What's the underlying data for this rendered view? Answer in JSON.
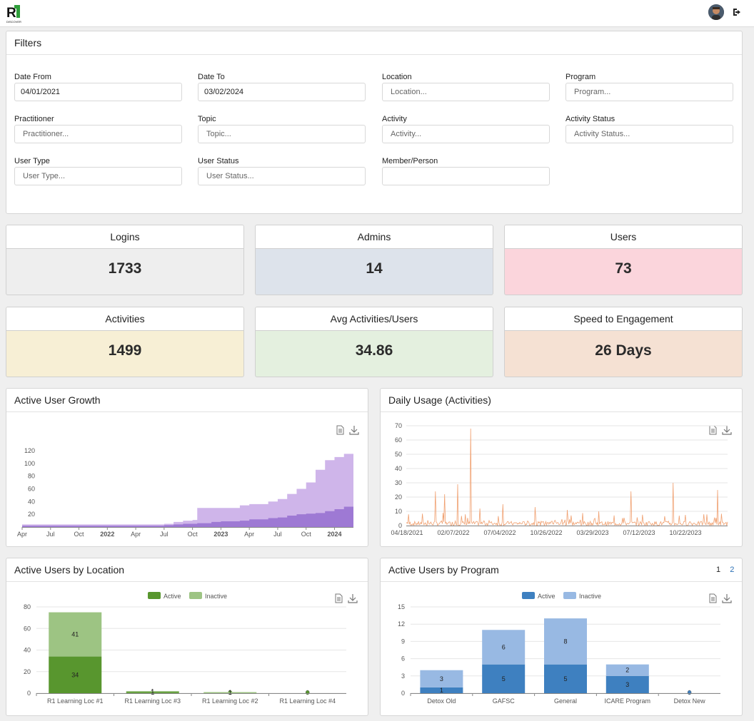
{
  "brand": {
    "logo_text": "DISCOVER"
  },
  "filters": {
    "title": "Filters",
    "date_from": {
      "label": "Date From",
      "value": "04/01/2021"
    },
    "date_to": {
      "label": "Date To",
      "value": "03/02/2024"
    },
    "location": {
      "label": "Location",
      "placeholder": "Location..."
    },
    "program": {
      "label": "Program",
      "placeholder": "Program..."
    },
    "practitioner": {
      "label": "Practitioner",
      "placeholder": "Practitioner..."
    },
    "topic": {
      "label": "Topic",
      "placeholder": "Topic..."
    },
    "activity": {
      "label": "Activity",
      "placeholder": "Activity..."
    },
    "activity_status": {
      "label": "Activity Status",
      "placeholder": "Activity Status..."
    },
    "user_type": {
      "label": "User Type",
      "placeholder": "User Type..."
    },
    "user_status": {
      "label": "User Status",
      "placeholder": "User Status..."
    },
    "member": {
      "label": "Member/Person",
      "placeholder": ""
    }
  },
  "stats": [
    {
      "label": "Logins",
      "value": "1733",
      "color": "#eeeeee"
    },
    {
      "label": "Admins",
      "value": "14",
      "color": "#dde3eb"
    },
    {
      "label": "Users",
      "value": "73",
      "color": "#fbd5dc"
    },
    {
      "label": "Activities",
      "value": "1499",
      "color": "#f7efd5"
    },
    {
      "label": "Avg Activities/Users",
      "value": "34.86",
      "color": "#e4f0df"
    },
    {
      "label": "Speed to Engagement",
      "value": "26 Days",
      "color": "#f5e1d3"
    }
  ],
  "charts": {
    "growth_title": "Active User Growth",
    "daily_title": "Daily Usage (Activities)",
    "location_title": "Active Users by Location",
    "program_title": "Active Users by Program",
    "pager": [
      "1",
      "2"
    ]
  },
  "icons": [
    "data-view-icon",
    "download-icon",
    "logout-icon",
    "avatar"
  ],
  "chart_data": [
    {
      "type": "area",
      "title": "Active User Growth",
      "x_ticks": [
        "Apr",
        "Jul",
        "Oct",
        "2022",
        "Apr",
        "Jul",
        "Oct",
        "2023",
        "Apr",
        "Jul",
        "Oct",
        "2024"
      ],
      "y_ticks": [
        20,
        40,
        60,
        80,
        100,
        120
      ],
      "ylim": [
        0,
        130
      ],
      "x": [
        0,
        3,
        6,
        9,
        12,
        15,
        16,
        17,
        18,
        18.5,
        20,
        21,
        23,
        24,
        26,
        27,
        28,
        29,
        30,
        31,
        32,
        33,
        34,
        35
      ],
      "series": [
        {
          "values": [
            4,
            4,
            4,
            4,
            4,
            5,
            8,
            10,
            11,
            30,
            30,
            30,
            34,
            36,
            40,
            44,
            52,
            60,
            70,
            90,
            105,
            110,
            115,
            115
          ]
        },
        {
          "values": [
            2,
            2,
            2,
            2,
            2,
            3,
            4,
            5,
            5,
            6,
            8,
            9,
            10,
            12,
            14,
            15,
            18,
            20,
            21,
            22,
            25,
            28,
            32,
            32
          ]
        }
      ],
      "colors": [
        "#cfb5ea",
        "#9e79d4"
      ]
    },
    {
      "type": "line",
      "title": "Daily Usage (Activities)",
      "x_ticks": [
        "04/18/2021",
        "02/07/2022",
        "07/04/2022",
        "10/26/2022",
        "03/29/2023",
        "07/12/2023",
        "10/22/2023"
      ],
      "y_ticks": [
        0,
        10,
        20,
        30,
        40,
        50,
        60,
        70
      ],
      "ylim": [
        0,
        70
      ],
      "spikes": [
        [
          0.09,
          24
        ],
        [
          0.12,
          22
        ],
        [
          0.16,
          29
        ],
        [
          0.2,
          68
        ],
        [
          0.23,
          12
        ],
        [
          0.3,
          15
        ],
        [
          0.4,
          13
        ],
        [
          0.5,
          11
        ],
        [
          0.6,
          10
        ],
        [
          0.7,
          24
        ],
        [
          0.83,
          30
        ],
        [
          0.97,
          25
        ]
      ],
      "color": "#f0a070"
    },
    {
      "type": "bar",
      "title": "Active Users by Location",
      "stacked": true,
      "categories": [
        "R1 Learning Loc #1",
        "R1 Learning Loc #3",
        "R1 Learning Loc #2",
        "R1 Learning Loc #4"
      ],
      "series": [
        {
          "name": "Active",
          "values": [
            34,
            1,
            0,
            0
          ],
          "color": "#58962e"
        },
        {
          "name": "Inactive",
          "values": [
            41,
            1,
            1,
            0
          ],
          "color": "#9dc483"
        }
      ],
      "y_ticks": [
        0,
        20,
        40,
        60,
        80
      ],
      "ylim": [
        0,
        80
      ],
      "data_labels": [
        "34",
        "41",
        "1",
        "1",
        "0"
      ]
    },
    {
      "type": "bar",
      "title": "Active Users by Program",
      "stacked": true,
      "categories": [
        "Detox Old",
        "GAFSC",
        "General",
        "ICARE Program",
        "Detox New"
      ],
      "series": [
        {
          "name": "Active",
          "values": [
            1,
            5,
            5,
            3,
            0
          ],
          "color": "#3e80c0"
        },
        {
          "name": "Inactive",
          "values": [
            3,
            6,
            8,
            2,
            0
          ],
          "color": "#98b9e3"
        }
      ],
      "y_ticks": [
        0,
        3,
        6,
        9,
        12,
        15
      ],
      "ylim": [
        0,
        15
      ],
      "data_labels": [
        "1",
        "3",
        "5",
        "6",
        "5",
        "8",
        "3",
        "2",
        "0"
      ]
    }
  ]
}
